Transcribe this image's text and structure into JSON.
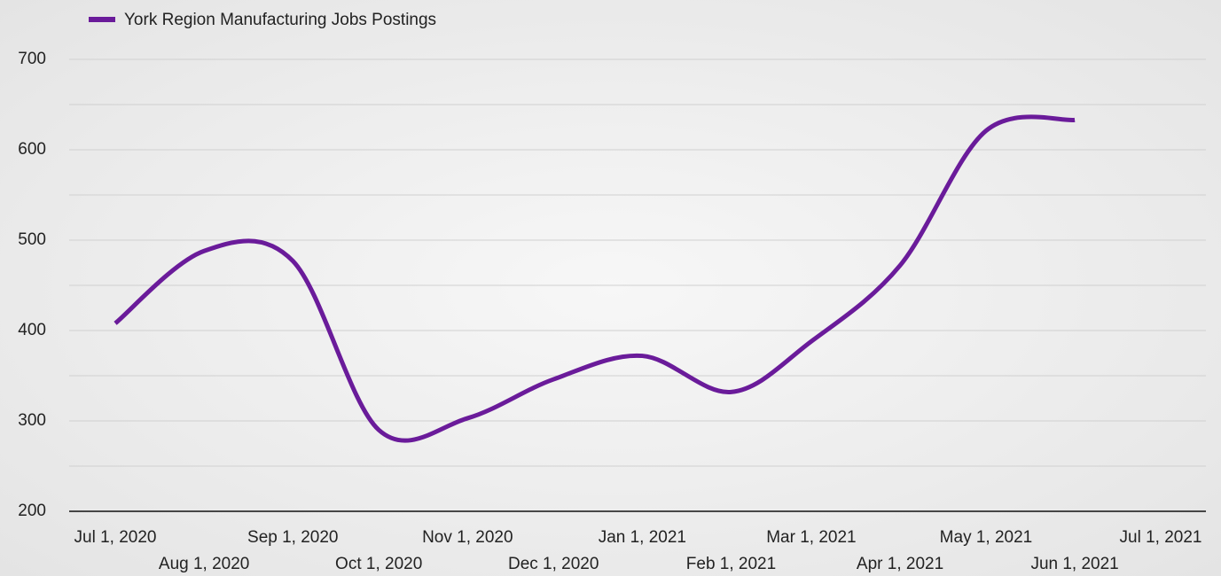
{
  "chart_data": {
    "type": "line",
    "x": [
      "2020-07-01",
      "2020-08-01",
      "2020-09-01",
      "2020-10-01",
      "2020-11-01",
      "2020-12-01",
      "2021-01-01",
      "2021-02-01",
      "2021-03-01",
      "2021-04-01",
      "2021-05-01",
      "2021-06-01"
    ],
    "series": [
      {
        "name": "York Region Manufacturing Jobs Postings",
        "color": "#6a1b9a",
        "values": [
          408,
          488,
          477,
          290,
          303,
          346,
          372,
          332,
          388,
          472,
          621,
          633
        ]
      }
    ],
    "ylim": [
      200,
      700
    ],
    "yticks": [
      200,
      300,
      400,
      500,
      600,
      700
    ],
    "yminor": [
      250,
      350,
      450,
      550,
      650
    ],
    "xlim": [
      "2020-07-01",
      "2021-07-01"
    ],
    "xticks": [
      {
        "value": "2020-07-01",
        "label": "Jul 1, 2020"
      },
      {
        "value": "2020-08-01",
        "label": "Aug 1, 2020"
      },
      {
        "value": "2020-09-01",
        "label": "Sep 1, 2020"
      },
      {
        "value": "2020-10-01",
        "label": "Oct 1, 2020"
      },
      {
        "value": "2020-11-01",
        "label": "Nov 1, 2020"
      },
      {
        "value": "2020-12-01",
        "label": "Dec 1, 2020"
      },
      {
        "value": "2021-01-01",
        "label": "Jan 1, 2021"
      },
      {
        "value": "2021-02-01",
        "label": "Feb 1, 2021"
      },
      {
        "value": "2021-03-01",
        "label": "Mar 1, 2021"
      },
      {
        "value": "2021-04-01",
        "label": "Apr 1, 2021"
      },
      {
        "value": "2021-05-01",
        "label": "May 1, 2021"
      },
      {
        "value": "2021-06-01",
        "label": "Jun 1, 2021"
      },
      {
        "value": "2021-07-01",
        "label": "Jul 1, 2021"
      }
    ],
    "grid": true,
    "legend": "top-left"
  }
}
